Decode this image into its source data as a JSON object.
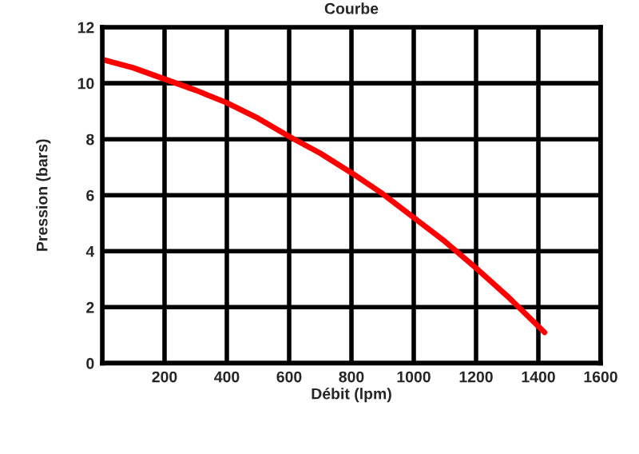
{
  "chart_data": {
    "type": "line",
    "title": "Courbe",
    "xlabel": "Débit (lpm)",
    "ylabel": "Pression (bars)",
    "x": [
      0,
      100,
      200,
      300,
      400,
      500,
      600,
      700,
      800,
      900,
      1000,
      1100,
      1200,
      1300,
      1420
    ],
    "series": [
      {
        "color": "#ff0000",
        "values": [
          10.85,
          10.55,
          10.15,
          9.75,
          9.3,
          8.75,
          8.1,
          7.5,
          6.8,
          6.05,
          5.2,
          4.35,
          3.4,
          2.4,
          1.1
        ]
      }
    ],
    "xlim": [
      0,
      1600
    ],
    "ylim": [
      0,
      12
    ],
    "xticks": [
      {
        "value": 0,
        "label": null
      },
      200,
      400,
      600,
      800,
      1000,
      1200,
      1400,
      1600
    ],
    "yticks": [
      0,
      2,
      4,
      6,
      8,
      10,
      12
    ],
    "grid": true,
    "marker": "none",
    "line_style": "solid"
  }
}
